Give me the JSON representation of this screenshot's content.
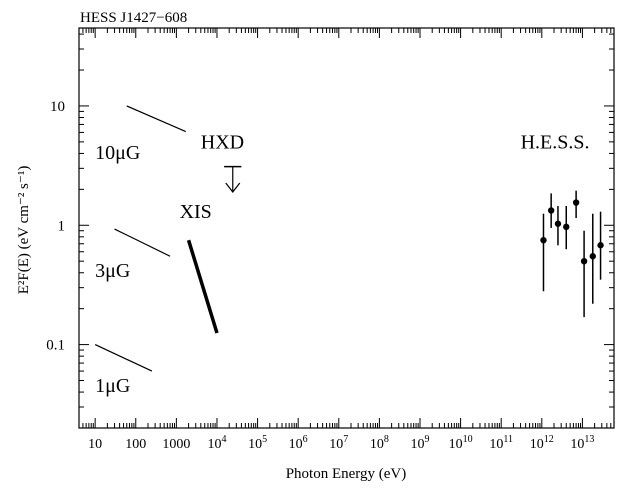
{
  "chart_data": {
    "type": "scatter",
    "title": "HESS J1427−608",
    "xlabel": "Photon Energy (eV)",
    "ylabel": "E²F(E) (eV cm⁻² s⁻¹)",
    "xscale": "log",
    "yscale": "log",
    "xlim": [
      4,
      60000000000000
    ],
    "ylim": [
      0.02,
      45
    ],
    "grid": false,
    "legend": "none",
    "x_tick_labels": [
      {
        "value": 10,
        "label": "10"
      },
      {
        "value": 100,
        "label": "100"
      },
      {
        "value": 1000,
        "label": "1000"
      },
      {
        "value": 10000,
        "label": "10⁴"
      },
      {
        "value": 100000,
        "label": "10⁵"
      },
      {
        "value": 1000000,
        "label": "10⁶"
      },
      {
        "value": 10000000,
        "label": "10⁷"
      },
      {
        "value": 100000000,
        "label": "10⁸"
      },
      {
        "value": 1000000000,
        "label": "10⁹"
      },
      {
        "value": 10000000000,
        "label": "10¹⁰"
      },
      {
        "value": 100000000000,
        "label": "10¹¹"
      },
      {
        "value": 1000000000000,
        "label": "10¹²"
      },
      {
        "value": 10000000000000,
        "label": "10¹³"
      }
    ],
    "y_tick_labels": [
      {
        "value": 10,
        "label": "10"
      },
      {
        "value": 1,
        "label": "1"
      },
      {
        "value": 0.1,
        "label": "0.1"
      }
    ],
    "model_lines": [
      {
        "name": "10μG",
        "x": [
          60,
          1700
        ],
        "y": [
          10,
          6.1
        ]
      },
      {
        "name": "3μG",
        "x": [
          30,
          700
        ],
        "y": [
          0.93,
          0.55
        ]
      },
      {
        "name": "1μG",
        "x": [
          10,
          250
        ],
        "y": [
          0.1,
          0.06
        ]
      }
    ],
    "xis": {
      "name": "XIS",
      "x": [
        2000,
        10000
      ],
      "y": [
        0.75,
        0.125
      ]
    },
    "hxd": {
      "name": "HXD",
      "x_range": [
        15000,
        40000
      ],
      "y": 3.1,
      "arrow_to": 1.9
    },
    "hess": {
      "name": "H.E.S.S.",
      "points": [
        {
          "x": 1100000000000,
          "y": 0.75,
          "ylo": 0.28,
          "yhi": 1.25
        },
        {
          "x": 1700000000000,
          "y": 1.33,
          "ylo": 0.95,
          "yhi": 1.85
        },
        {
          "x": 2500000000000,
          "y": 1.03,
          "ylo": 0.68,
          "yhi": 1.45
        },
        {
          "x": 4000000000000,
          "y": 0.97,
          "ylo": 0.63,
          "yhi": 1.45
        },
        {
          "x": 7000000000000,
          "y": 1.55,
          "ylo": 1.15,
          "yhi": 1.95
        },
        {
          "x": 11000000000000,
          "y": 0.5,
          "ylo": 0.17,
          "yhi": 0.9
        },
        {
          "x": 18000000000000,
          "y": 0.55,
          "ylo": 0.22,
          "yhi": 1.25
        },
        {
          "x": 28000000000000,
          "y": 0.68,
          "ylo": 0.35,
          "yhi": 1.3
        }
      ]
    },
    "annotations": [
      {
        "text": "10μG",
        "x": 10,
        "y": 3.6
      },
      {
        "text": "3μG",
        "x": 10,
        "y": 0.37
      },
      {
        "text": "1μG",
        "x": 10,
        "y": 0.04
      },
      {
        "text": "HXD",
        "x": 4000,
        "y": 4.4
      },
      {
        "text": "XIS",
        "x": 1200,
        "y": 1.15
      },
      {
        "text": "H.E.S.S.",
        "x": 300000000000,
        "y": 4.4
      }
    ]
  }
}
